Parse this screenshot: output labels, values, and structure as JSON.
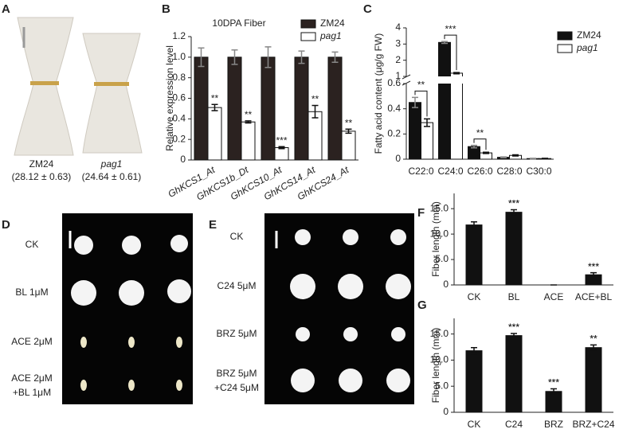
{
  "panels": {
    "letters": [
      "A",
      "B",
      "C",
      "D",
      "E",
      "F",
      "G"
    ],
    "photo_a": {
      "left_name": "ZM24",
      "left_value": "(28.12 ± 0.63)",
      "right_name": "pag1",
      "right_value": "(24.64 ± 0.61)"
    },
    "photo_d": {
      "rows": [
        "CK",
        "BL 1μM",
        "ACE 2μM",
        "ACE 2μM",
        "+BL 1μM"
      ]
    },
    "photo_e": {
      "rows": [
        "CK",
        "C24 5μM",
        "BRZ 5μM",
        "BRZ 5μM",
        "+C24 5μM"
      ]
    }
  },
  "chart_data": [
    {
      "type": "bar",
      "title": "10DPA Fiber",
      "ylabel": "Relative expression level",
      "categories": [
        "GhKCS1_At",
        "GhKCS1b_Dt",
        "GhKCS10_At",
        "GhKCS14_At",
        "GhKCS24_At"
      ],
      "series": [
        {
          "name": "ZM24",
          "color": "#2b2220",
          "values": [
            1.0,
            1.0,
            1.0,
            1.0,
            1.0
          ],
          "errors": [
            0.09,
            0.07,
            0.1,
            0.06,
            0.05
          ]
        },
        {
          "name": "pag1",
          "color": "#ffffff",
          "values": [
            0.51,
            0.37,
            0.12,
            0.47,
            0.28
          ],
          "errors": [
            0.03,
            0.01,
            0.01,
            0.06,
            0.02
          ],
          "annotations": [
            "**",
            "**",
            "***",
            "**",
            "**"
          ]
        }
      ],
      "ylim": [
        0,
        1.2
      ],
      "yticks": [
        0,
        0.2,
        0.4,
        0.6,
        0.8,
        {
          "value": 1,
          "label": "1.0"
        },
        1.2
      ],
      "legend": "top-right"
    },
    {
      "type": "bar",
      "ylabel": "Fatty acid content (μg/g FW)",
      "categories": [
        "C22:0",
        "C24:0",
        "C26:0",
        "C28:0",
        "C30:0"
      ],
      "series": [
        {
          "name": "ZM24",
          "color": "#111111",
          "values": [
            0.45,
            3.1,
            0.1,
            0.015,
            0.005
          ],
          "errors": [
            0.04,
            0.06,
            0.01,
            0.003,
            0.002
          ]
        },
        {
          "name": "pag1",
          "color": "#ffffff",
          "values": [
            0.29,
            1.2,
            0.05,
            0.03,
            0.005
          ],
          "errors": [
            0.03,
            0.04,
            0.005,
            0.005,
            0.002
          ]
        }
      ],
      "annotations": [
        "**",
        "***",
        "**",
        null,
        null
      ],
      "ylim": [
        0,
        4
      ],
      "axis_break": [
        0.6,
        1
      ],
      "yticks": [
        0,
        0.2,
        0.4,
        0.6,
        1,
        2,
        3,
        4
      ],
      "legend": "top-right"
    },
    {
      "type": "bar",
      "ylabel": "Fiber length (mm)",
      "categories": [
        "CK",
        "BL",
        "ACE",
        "ACE+BL"
      ],
      "color": "#111111",
      "values": [
        11.8,
        14.3,
        0,
        2.0
      ],
      "errors": [
        0.6,
        0.5,
        0,
        0.4
      ],
      "annotations": [
        null,
        "***",
        null,
        "***"
      ],
      "ylim": [
        0,
        18
      ],
      "yticks": [
        0,
        {
          "value": 5,
          "label": "5.0"
        },
        {
          "value": 10,
          "label": "10.0"
        },
        {
          "value": 15,
          "label": "15.0"
        }
      ]
    },
    {
      "type": "bar",
      "ylabel": "Fiber length (mm)",
      "categories": [
        "CK",
        "C24",
        "BRZ",
        "BRZ+C24"
      ],
      "color": "#111111",
      "values": [
        11.8,
        14.7,
        4.0,
        12.4
      ],
      "errors": [
        0.6,
        0.4,
        0.5,
        0.5
      ],
      "annotations": [
        null,
        "***",
        "***",
        "**"
      ],
      "ylim": [
        0,
        18
      ],
      "yticks": [
        0,
        {
          "value": 5,
          "label": "5.0"
        },
        {
          "value": 10,
          "label": "10.0"
        },
        {
          "value": 15,
          "label": "15.0"
        }
      ]
    }
  ]
}
